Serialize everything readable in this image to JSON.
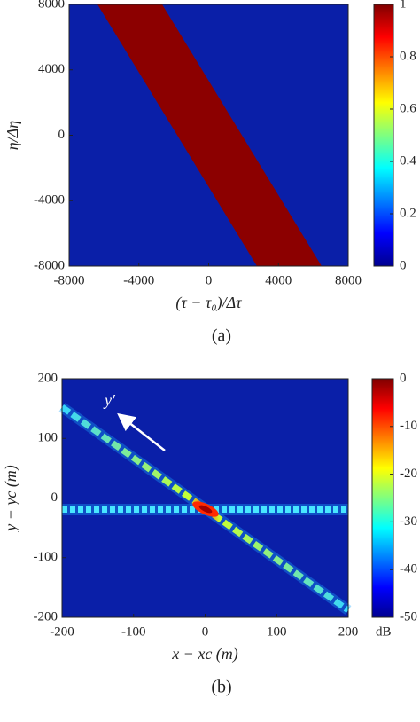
{
  "chart_data": [
    {
      "type": "heatmap",
      "colormap": "jet",
      "xlabel": "(τ − τ₀)/Δτ",
      "ylabel": "η/Δη",
      "xlim": [
        -8000,
        8000
      ],
      "ylim": [
        -8000,
        8000
      ],
      "xticks": [
        -8000,
        -4000,
        0,
        4000,
        8000
      ],
      "yticks": [
        -8000,
        -4000,
        0,
        4000,
        8000
      ],
      "clim": [
        0,
        1
      ],
      "cticks": [
        0,
        0.2,
        0.4,
        0.6,
        0.8,
        1
      ],
      "caption": "(a)"
    },
    {
      "type": "heatmap",
      "colormap": "jet",
      "xlabel": "x − xc (m)",
      "ylabel": "y − yc (m)",
      "xlim": [
        -200,
        200
      ],
      "ylim": [
        -200,
        200
      ],
      "xticks": [
        -200,
        -100,
        0,
        100,
        200
      ],
      "yticks": [
        -200,
        -100,
        0,
        100,
        200
      ],
      "clim": [
        -50,
        0
      ],
      "cticks": [
        -50,
        -40,
        -30,
        -20,
        -10,
        0
      ],
      "clabel": "dB",
      "annotation": "y′",
      "caption": "(b)"
    }
  ]
}
